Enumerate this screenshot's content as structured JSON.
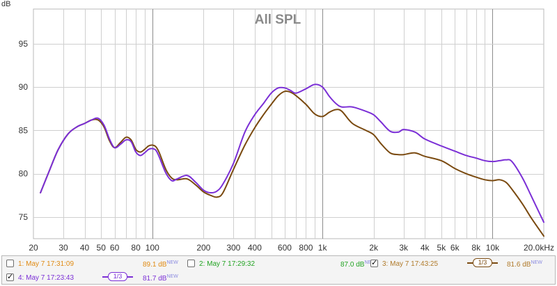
{
  "chart_data": {
    "type": "line",
    "title": "All SPL",
    "ylabel": "dB",
    "xunit": "kHz",
    "xscale": "log",
    "xlim": [
      20,
      20000
    ],
    "ylim": [
      72.5,
      99
    ],
    "grid": true,
    "x_ticks": [
      20,
      30,
      40,
      50,
      60,
      80,
      100,
      200,
      300,
      400,
      600,
      800,
      1000,
      2000,
      3000,
      4000,
      5000,
      6000,
      8000,
      10000,
      20000
    ],
    "x_tick_labels": [
      "20",
      "30",
      "40",
      "50",
      "60",
      "80",
      "100",
      "200",
      "300",
      "400",
      "600",
      "800",
      "1k",
      "2k",
      "3k",
      "4k",
      "5k",
      "6k",
      "8k",
      "10k",
      "20.0kHz"
    ],
    "y_ticks": [
      75,
      80,
      85,
      90,
      95
    ],
    "y_tick_labels": [
      "75",
      "80",
      "85",
      "90",
      "95"
    ],
    "series": [
      {
        "name": "3: May 7 17:43:25",
        "color": "#7a4a10",
        "x": [
          22,
          25,
          28,
          32,
          36,
          40,
          44,
          48,
          52,
          56,
          60,
          65,
          70,
          75,
          80,
          85,
          90,
          95,
          100,
          105,
          110,
          120,
          130,
          140,
          160,
          180,
          200,
          220,
          240,
          260,
          300,
          350,
          400,
          450,
          500,
          550,
          600,
          650,
          700,
          800,
          900,
          1000,
          1100,
          1200,
          1300,
          1500,
          1800,
          2000,
          2200,
          2500,
          2800,
          3000,
          3500,
          4000,
          5000,
          6000,
          7000,
          8000,
          9000,
          10000,
          11000,
          12000,
          13000,
          15000,
          17000,
          20000
        ],
        "y": [
          77.8,
          80.5,
          82.8,
          84.6,
          85.4,
          85.8,
          86.2,
          86.2,
          85.4,
          83.8,
          83.0,
          83.6,
          84.2,
          83.9,
          82.8,
          82.5,
          82.8,
          83.2,
          83.3,
          83.1,
          82.4,
          80.5,
          79.5,
          79.3,
          79.4,
          78.7,
          77.9,
          77.5,
          77.3,
          77.8,
          80.5,
          83.3,
          85.3,
          86.8,
          88.0,
          89.0,
          89.5,
          89.4,
          89.0,
          88.0,
          86.9,
          86.6,
          87.1,
          87.4,
          87.2,
          85.8,
          85.0,
          84.5,
          83.5,
          82.4,
          82.2,
          82.2,
          82.4,
          82.0,
          81.5,
          80.6,
          80.0,
          79.6,
          79.3,
          79.2,
          79.3,
          79.0,
          78.2,
          76.5,
          74.8,
          72.8
        ]
      },
      {
        "name": "4: May 7 17:23:43",
        "color": "#7b2fd6",
        "x": [
          22,
          25,
          28,
          32,
          36,
          40,
          44,
          48,
          52,
          56,
          60,
          65,
          70,
          75,
          80,
          85,
          90,
          95,
          100,
          105,
          110,
          120,
          130,
          140,
          160,
          180,
          200,
          220,
          240,
          260,
          300,
          350,
          400,
          450,
          500,
          550,
          600,
          650,
          700,
          800,
          900,
          1000,
          1100,
          1200,
          1300,
          1500,
          1800,
          2000,
          2200,
          2500,
          2800,
          3000,
          3500,
          4000,
          5000,
          6000,
          7000,
          8000,
          9000,
          10000,
          11000,
          12000,
          13000,
          15000,
          17000,
          20000
        ],
        "y": [
          77.8,
          80.5,
          82.8,
          84.6,
          85.4,
          85.8,
          86.2,
          86.4,
          85.6,
          84.0,
          83.0,
          83.4,
          83.9,
          83.7,
          82.5,
          82.1,
          82.4,
          82.8,
          82.9,
          82.7,
          81.9,
          80.1,
          79.2,
          79.4,
          79.8,
          79.0,
          78.1,
          77.8,
          78.0,
          78.8,
          81.2,
          84.8,
          86.8,
          88.1,
          89.3,
          89.9,
          89.9,
          89.6,
          89.3,
          89.8,
          90.3,
          90.0,
          88.9,
          88.1,
          87.7,
          87.7,
          87.2,
          86.8,
          86.0,
          84.9,
          84.8,
          85.1,
          84.8,
          84.0,
          83.2,
          82.6,
          82.1,
          81.8,
          81.5,
          81.4,
          81.5,
          81.6,
          81.4,
          79.5,
          77.3,
          74.4
        ]
      }
    ],
    "legend": {
      "position": "bottom",
      "items": [
        {
          "label": "1: May 7 17:31:09",
          "value": "89.1 dB",
          "badge": "NEW",
          "checked": false,
          "color": "#e08a12"
        },
        {
          "label": "2: May 7 17:29:32",
          "value": "87.0 dB",
          "badge": "NEW",
          "checked": false,
          "color": "#22a322"
        },
        {
          "label": "3: May 7 17:43:25",
          "value": "81.6 dB",
          "badge": "NEW",
          "checked": true,
          "color": "#b07a2a",
          "smoothing": "1/3"
        },
        {
          "label": "4: May 7 17:23:43",
          "value": "81.7 dB",
          "badge": "NEW",
          "checked": true,
          "color": "#7b2fd6",
          "smoothing": "1/3"
        }
      ]
    },
    "colors": {
      "grid": "#cfcfcf",
      "major_grid": "#8c8c8c",
      "title": "#8a8a8a",
      "axis_text": "#333333"
    }
  }
}
